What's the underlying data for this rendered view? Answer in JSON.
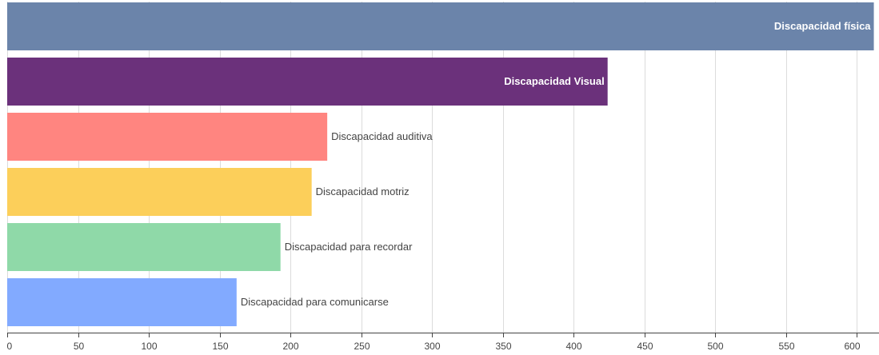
{
  "chart_data": {
    "type": "bar",
    "orientation": "horizontal",
    "title": "",
    "xlabel": "",
    "ylabel": "",
    "xlim": [
      0,
      610
    ],
    "x_ticks": [
      0,
      50,
      100,
      150,
      200,
      250,
      300,
      350,
      400,
      450,
      500,
      550,
      600
    ],
    "grid": true,
    "categories": [
      "Discapacidad física",
      "Discapacidad Visual",
      "Discapacidad auditiva",
      "Discapacidad motriz",
      "Discapacidad para recordar",
      "Discapacidad para comunicarse"
    ],
    "values": [
      612,
      424,
      226,
      215,
      193,
      162
    ],
    "colors": [
      "#6b84aa",
      "#6b317b",
      "#ff8580",
      "#fccf5a",
      "#8fd9a8",
      "#82aaff"
    ],
    "label_position": [
      "inside",
      "inside",
      "outside",
      "outside",
      "outside",
      "outside"
    ]
  }
}
